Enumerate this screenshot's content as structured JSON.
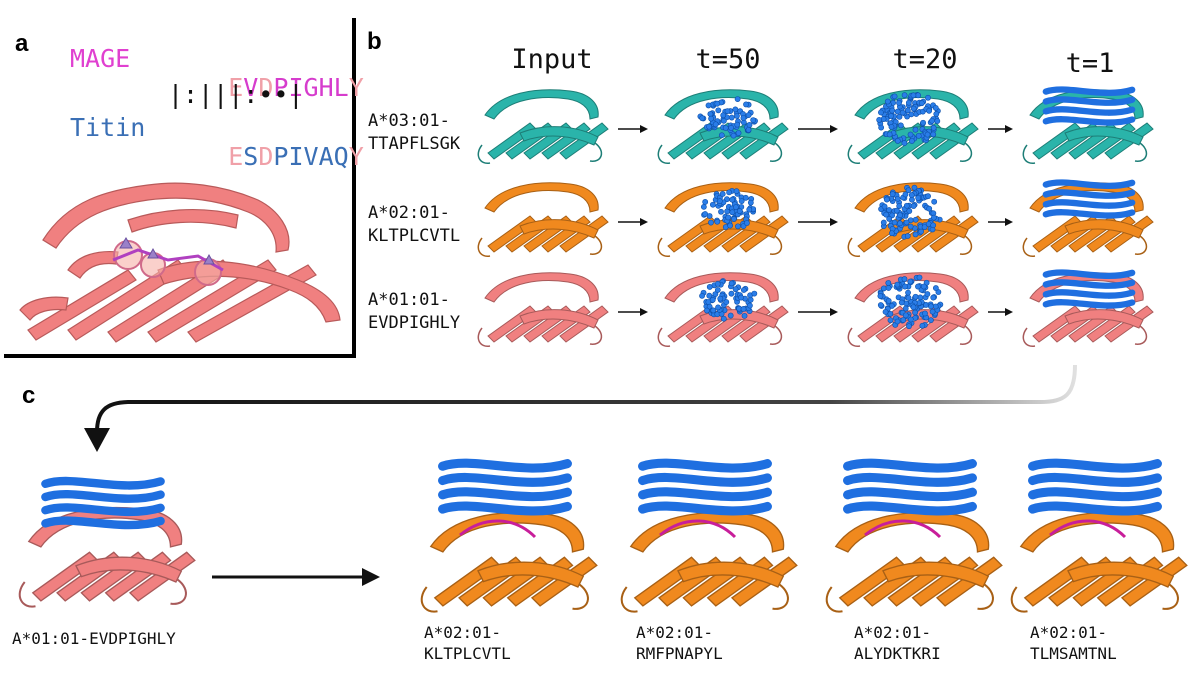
{
  "panels": {
    "a": {
      "letter": "a",
      "row1": {
        "name": "MAGE",
        "residues": [
          "E",
          "V",
          "D",
          "P",
          "I",
          "G",
          "H",
          "L",
          "Y"
        ],
        "colors": [
          "#f0a0a8",
          "#d63ccd",
          "#f0a0a8",
          "#d63ccd",
          "#d63ccd",
          "#d63ccd",
          "#d63ccd",
          "#d63ccd",
          "#f0a0a8"
        ]
      },
      "match_line": "|:|||:••|",
      "row2": {
        "name": "Titin",
        "residues": [
          "E",
          "S",
          "D",
          "P",
          "I",
          "V",
          "A",
          "Q",
          "Y"
        ],
        "colors": [
          "#f0a0a8",
          "#3a6fb5",
          "#f0a0a8",
          "#3a6fb5",
          "#3a6fb5",
          "#3a6fb5",
          "#3a6fb5",
          "#3a6fb5",
          "#f0a0a8"
        ]
      }
    },
    "b": {
      "letter": "b",
      "columns": [
        "Input",
        "t=50",
        "t=20",
        "t=1"
      ],
      "rows": [
        {
          "label_line1": "A*03:01-",
          "label_line2": "TTAPFLSGK",
          "color": "#2ab4aa"
        },
        {
          "label_line1": "A*02:01-",
          "label_line2": "KLTPLCVTL",
          "color": "#f0891e"
        },
        {
          "label_line1": "A*01:01-",
          "label_line2": "EVDPIGHLY",
          "color": "#f08080"
        }
      ]
    },
    "c": {
      "letter": "c",
      "source_label": "A*01:01-EVDPIGHLY",
      "targets": [
        {
          "line1": "A*02:01-",
          "line2": "KLTPLCVTL"
        },
        {
          "line1": "A*02:01-",
          "line2": "RMFPNAPYL"
        },
        {
          "line1": "A*02:01-",
          "line2": "ALYDKTKRI"
        },
        {
          "line1": "A*02:01-",
          "line2": "TLMSAMTNL"
        }
      ]
    }
  },
  "colors": {
    "teal_protein": "#2ab4aa",
    "orange_protein": "#f0891e",
    "salmon_protein": "#f08080",
    "blue_protein": "#1f6fe0",
    "peptide_magenta": "#c81e9a"
  }
}
